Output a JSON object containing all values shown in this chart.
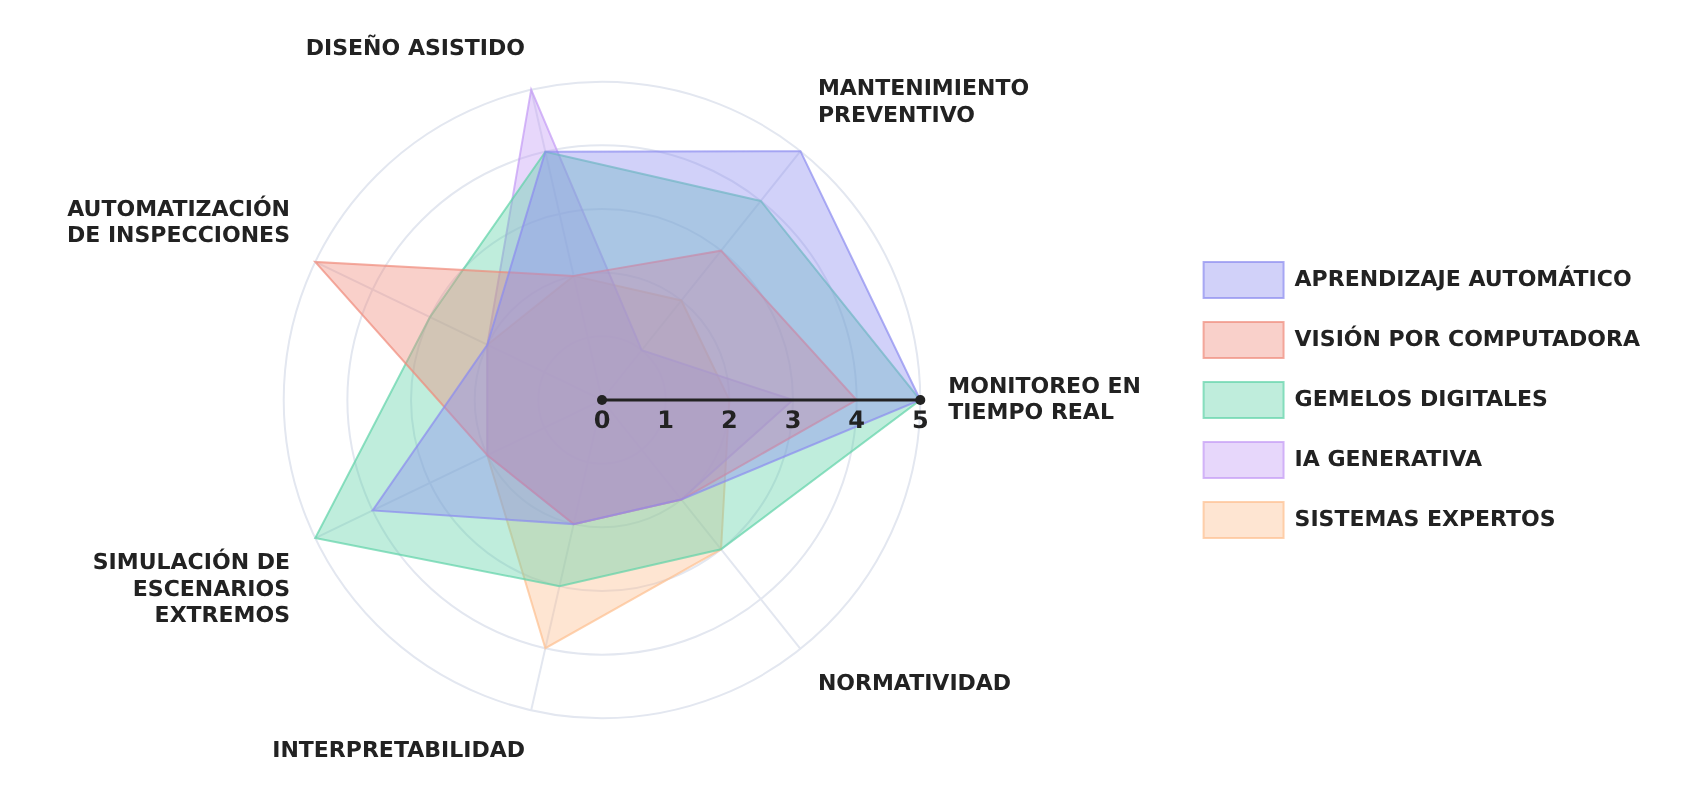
{
  "chart_data": {
    "type": "radar",
    "categories": [
      "DISEÑO ASISTIDO",
      "MANTENIMIENTO PREVENTIVO",
      "MONITOREO EN TIEMPO REAL",
      "NORMATIVIDAD",
      "INTERPRETABILIDAD",
      "SIMULACIÓN DE ESCENARIOS EXTREMOS",
      "AUTOMATIZACIÓN DE INSPECCIONES"
    ],
    "series": [
      {
        "name": "APRENDIZAJE AUTOMÁTICO",
        "color": "#8b8cf0",
        "values": [
          4,
          5,
          5,
          2,
          2,
          4,
          2
        ]
      },
      {
        "name": "VISIÓN POR COMPUTADORA",
        "color": "#f08a7a",
        "values": [
          2,
          3,
          4,
          2,
          2,
          2,
          5
        ]
      },
      {
        "name": "GEMELOS DIGITALES",
        "color": "#5fd3a8",
        "values": [
          4,
          4,
          5,
          3,
          3,
          5,
          3
        ]
      },
      {
        "name": "IA GENERATIVA",
        "color": "#c39af5",
        "values": [
          5,
          1,
          3,
          2,
          2,
          2,
          2
        ]
      },
      {
        "name": "SISTEMAS EXPERTOS",
        "color": "#fdbf8f",
        "values": [
          2,
          2,
          2,
          3,
          4,
          2,
          2
        ]
      }
    ],
    "ylim": [
      0,
      5
    ],
    "yticks": [
      0,
      1,
      2,
      3,
      4,
      5
    ],
    "grid": true,
    "legend": "right",
    "marker": "none"
  }
}
